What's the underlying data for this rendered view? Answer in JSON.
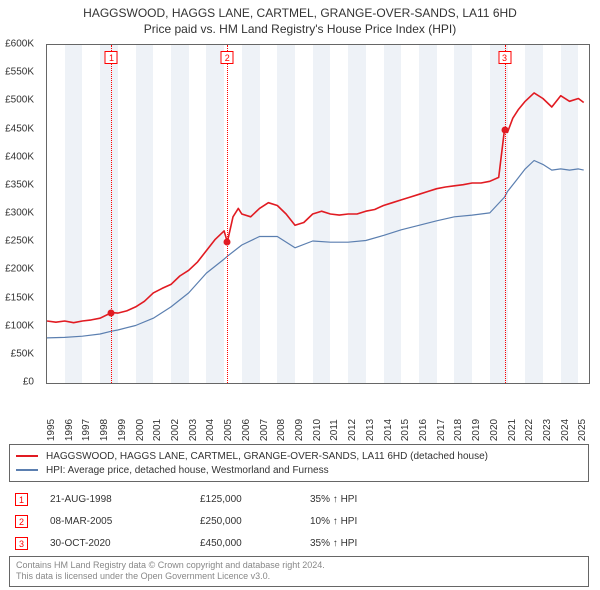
{
  "title_line1": "HAGGSWOOD, HAGGS LANE, CARTMEL, GRANGE-OVER-SANDS, LA11 6HD",
  "title_line2": "Price paid vs. HM Land Registry's House Price Index (HPI)",
  "chart": {
    "type": "line",
    "x_domain": [
      1995,
      2025.6
    ],
    "y_domain": [
      0,
      600000
    ],
    "ytick_step": 50000,
    "y_prefix": "£",
    "y_suffix_k": "K",
    "x_ticks": [
      1995,
      1996,
      1997,
      1998,
      1999,
      2000,
      2001,
      2002,
      2003,
      2004,
      2005,
      2006,
      2007,
      2008,
      2009,
      2010,
      2011,
      2012,
      2013,
      2014,
      2015,
      2016,
      2017,
      2018,
      2019,
      2020,
      2021,
      2022,
      2023,
      2024,
      2025
    ],
    "band_color": "#eef2f7",
    "border_color": "#666666",
    "background_color": "#ffffff",
    "series": [
      {
        "name": "property",
        "color": "#e11b22",
        "width": 1.6,
        "legend": "HAGGSWOOD, HAGGS LANE, CARTMEL, GRANGE-OVER-SANDS, LA11 6HD (detached house)",
        "points": [
          [
            1995.0,
            110000
          ],
          [
            1995.5,
            108000
          ],
          [
            1996.0,
            110000
          ],
          [
            1996.5,
            107000
          ],
          [
            1997.0,
            110000
          ],
          [
            1997.5,
            112000
          ],
          [
            1998.0,
            115000
          ],
          [
            1998.64,
            125000
          ],
          [
            1999.0,
            124000
          ],
          [
            1999.5,
            128000
          ],
          [
            2000.0,
            135000
          ],
          [
            2000.5,
            145000
          ],
          [
            2001.0,
            160000
          ],
          [
            2001.5,
            168000
          ],
          [
            2002.0,
            175000
          ],
          [
            2002.5,
            190000
          ],
          [
            2003.0,
            200000
          ],
          [
            2003.5,
            215000
          ],
          [
            2004.0,
            235000
          ],
          [
            2004.5,
            255000
          ],
          [
            2005.0,
            270000
          ],
          [
            2005.18,
            250000
          ],
          [
            2005.5,
            295000
          ],
          [
            2005.8,
            310000
          ],
          [
            2006.0,
            300000
          ],
          [
            2006.5,
            295000
          ],
          [
            2007.0,
            310000
          ],
          [
            2007.5,
            320000
          ],
          [
            2008.0,
            315000
          ],
          [
            2008.5,
            300000
          ],
          [
            2009.0,
            280000
          ],
          [
            2009.5,
            285000
          ],
          [
            2010.0,
            300000
          ],
          [
            2010.5,
            305000
          ],
          [
            2011.0,
            300000
          ],
          [
            2011.5,
            298000
          ],
          [
            2012.0,
            300000
          ],
          [
            2012.5,
            300000
          ],
          [
            2013.0,
            305000
          ],
          [
            2013.5,
            308000
          ],
          [
            2014.0,
            315000
          ],
          [
            2014.5,
            320000
          ],
          [
            2015.0,
            325000
          ],
          [
            2015.5,
            330000
          ],
          [
            2016.0,
            335000
          ],
          [
            2016.5,
            340000
          ],
          [
            2017.0,
            345000
          ],
          [
            2017.5,
            348000
          ],
          [
            2018.0,
            350000
          ],
          [
            2018.5,
            352000
          ],
          [
            2019.0,
            355000
          ],
          [
            2019.5,
            355000
          ],
          [
            2020.0,
            358000
          ],
          [
            2020.5,
            365000
          ],
          [
            2020.83,
            450000
          ],
          [
            2021.0,
            445000
          ],
          [
            2021.3,
            470000
          ],
          [
            2021.6,
            485000
          ],
          [
            2022.0,
            500000
          ],
          [
            2022.5,
            515000
          ],
          [
            2023.0,
            505000
          ],
          [
            2023.5,
            490000
          ],
          [
            2024.0,
            510000
          ],
          [
            2024.5,
            500000
          ],
          [
            2025.0,
            505000
          ],
          [
            2025.3,
            498000
          ]
        ]
      },
      {
        "name": "hpi",
        "color": "#5b7fb0",
        "width": 1.2,
        "legend": "HPI: Average price, detached house, Westmorland and Furness",
        "points": [
          [
            1995.0,
            80000
          ],
          [
            1996.0,
            81000
          ],
          [
            1997.0,
            83000
          ],
          [
            1998.0,
            87000
          ],
          [
            1998.64,
            92000
          ],
          [
            1999.0,
            94000
          ],
          [
            2000.0,
            102000
          ],
          [
            2001.0,
            115000
          ],
          [
            2002.0,
            135000
          ],
          [
            2003.0,
            160000
          ],
          [
            2004.0,
            195000
          ],
          [
            2005.0,
            220000
          ],
          [
            2005.18,
            225000
          ],
          [
            2006.0,
            245000
          ],
          [
            2007.0,
            260000
          ],
          [
            2008.0,
            260000
          ],
          [
            2009.0,
            240000
          ],
          [
            2010.0,
            252000
          ],
          [
            2011.0,
            250000
          ],
          [
            2012.0,
            250000
          ],
          [
            2013.0,
            253000
          ],
          [
            2014.0,
            262000
          ],
          [
            2015.0,
            272000
          ],
          [
            2016.0,
            280000
          ],
          [
            2017.0,
            288000
          ],
          [
            2018.0,
            295000
          ],
          [
            2019.0,
            298000
          ],
          [
            2020.0,
            302000
          ],
          [
            2020.83,
            330000
          ],
          [
            2021.0,
            340000
          ],
          [
            2021.5,
            360000
          ],
          [
            2022.0,
            380000
          ],
          [
            2022.5,
            395000
          ],
          [
            2023.0,
            388000
          ],
          [
            2023.5,
            378000
          ],
          [
            2024.0,
            380000
          ],
          [
            2024.5,
            378000
          ],
          [
            2025.0,
            380000
          ],
          [
            2025.3,
            378000
          ]
        ]
      }
    ],
    "event_line_color": "#ff0000",
    "event_markers": [
      {
        "n": "1",
        "x": 1998.64,
        "y": 125000
      },
      {
        "n": "2",
        "x": 2005.18,
        "y": 250000
      },
      {
        "n": "3",
        "x": 2020.83,
        "y": 450000
      }
    ]
  },
  "events": [
    {
      "n": "1",
      "date": "21-AUG-1998",
      "price": "£125,000",
      "diff": "35% ↑ HPI"
    },
    {
      "n": "2",
      "date": "08-MAR-2005",
      "price": "£250,000",
      "diff": "10% ↑ HPI"
    },
    {
      "n": "3",
      "date": "30-OCT-2020",
      "price": "£450,000",
      "diff": "35% ↑ HPI"
    }
  ],
  "attribution_line1": "Contains HM Land Registry data © Crown copyright and database right 2024.",
  "attribution_line2": "This data is licensed under the Open Government Licence v3.0."
}
